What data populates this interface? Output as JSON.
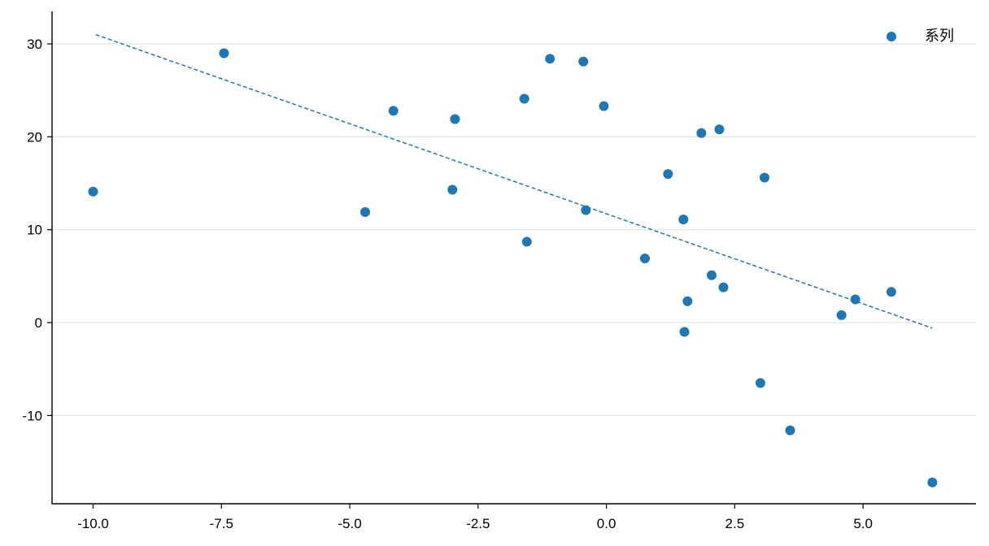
{
  "chart_data": {
    "type": "scatter",
    "title": "",
    "xlabel": "",
    "ylabel": "",
    "xlim": [
      -10.8,
      7.2
    ],
    "ylim": [
      -19.5,
      33.5
    ],
    "xticks": [
      -10.0,
      -7.5,
      -5.0,
      -2.5,
      0.0,
      2.5,
      5.0
    ],
    "xtick_labels": [
      "-10.0",
      "-7.5",
      "-5.0",
      "-2.5",
      "0.0",
      "2.5",
      "5.0"
    ],
    "yticks": [
      -10,
      0,
      10,
      20,
      30
    ],
    "ytick_labels": [
      "-10",
      "0",
      "10",
      "20",
      "30"
    ],
    "grid": "horizontal",
    "legend_position": "top-right",
    "series": [
      {
        "name": "系列",
        "color": "#1f77b4",
        "points": [
          {
            "x": -10.0,
            "y": 14.1
          },
          {
            "x": -7.45,
            "y": 29.0
          },
          {
            "x": -4.7,
            "y": 11.9
          },
          {
            "x": -4.15,
            "y": 22.8
          },
          {
            "x": -3.0,
            "y": 14.3
          },
          {
            "x": -2.95,
            "y": 21.9
          },
          {
            "x": -1.6,
            "y": 24.1
          },
          {
            "x": -1.55,
            "y": 8.7
          },
          {
            "x": -1.1,
            "y": 28.4
          },
          {
            "x": -0.45,
            "y": 28.1
          },
          {
            "x": -0.4,
            "y": 12.1
          },
          {
            "x": -0.05,
            "y": 23.3
          },
          {
            "x": 0.75,
            "y": 6.9
          },
          {
            "x": 1.2,
            "y": 16.0
          },
          {
            "x": 1.5,
            "y": 11.1
          },
          {
            "x": 1.52,
            "y": -1.0
          },
          {
            "x": 1.58,
            "y": 2.3
          },
          {
            "x": 1.85,
            "y": 20.4
          },
          {
            "x": 2.05,
            "y": 5.1
          },
          {
            "x": 2.2,
            "y": 20.8
          },
          {
            "x": 2.28,
            "y": 3.8
          },
          {
            "x": 3.0,
            "y": -6.5
          },
          {
            "x": 3.08,
            "y": 15.6
          },
          {
            "x": 3.58,
            "y": -11.6
          },
          {
            "x": 4.58,
            "y": 0.8
          },
          {
            "x": 4.85,
            "y": 2.5
          },
          {
            "x": 5.55,
            "y": 3.3
          },
          {
            "x": 6.35,
            "y": -17.2
          }
        ]
      }
    ],
    "trendline": {
      "style": "dashed",
      "color": "#1f77b4",
      "x": [
        -9.95,
        6.35
      ],
      "y": [
        31.0,
        -0.6
      ]
    }
  }
}
